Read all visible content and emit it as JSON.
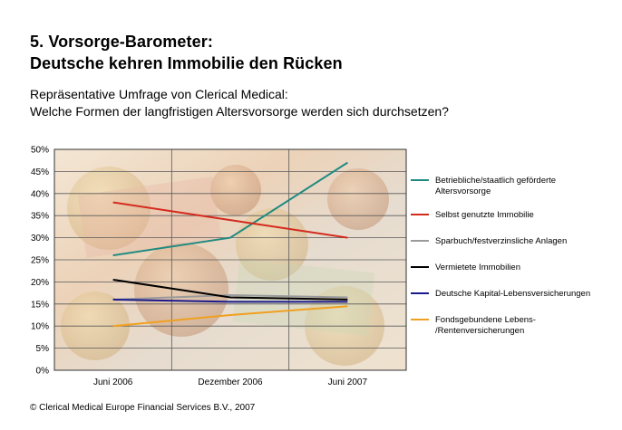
{
  "header": {
    "title_line1": "5. Vorsorge-Barometer:",
    "title_line2": "Deutsche kehren Immobilie den Rücken",
    "subtitle_line1": "Repräsentative Umfrage von Clerical Medical:",
    "subtitle_line2": "Welche Formen der langfristigen Altersvorsorge werden sich durchsetzen?"
  },
  "footer": {
    "copyright": "© Clerical Medical Europe Financial Services B.V., 2007"
  },
  "chart_data": {
    "type": "line",
    "categories": [
      "Juni 2006",
      "Dezember 2006",
      "Juni 2007"
    ],
    "ylim": [
      0,
      50
    ],
    "yticks": [
      0,
      5,
      10,
      15,
      20,
      25,
      30,
      35,
      40,
      45,
      50
    ],
    "ytick_labels": [
      "0%",
      "5%",
      "10%",
      "15%",
      "20%",
      "25%",
      "30%",
      "35%",
      "40%",
      "45%",
      "50%"
    ],
    "grid": true,
    "legend_position": "right",
    "series": [
      {
        "name": "Betriebliche/staatlich geförderte Altersvorsorge",
        "legend_lines": [
          "Betriebliche/staatlich geförderte",
          "Altersvorsorge"
        ],
        "color": "#1f8a80",
        "values": [
          26,
          30,
          47
        ]
      },
      {
        "name": "Selbst genutzte Immobilie",
        "legend_lines": [
          "Selbst genutzte Immobilie"
        ],
        "color": "#d42a1e",
        "values": [
          38,
          34,
          30
        ]
      },
      {
        "name": "Sparbuch/festverzinsliche Anlagen",
        "legend_lines": [
          "Sparbuch/festverzinsliche Anlagen"
        ],
        "color": "#9a9a9a",
        "values": [
          16,
          17,
          16.5
        ]
      },
      {
        "name": "Vermietete Immobilien",
        "legend_lines": [
          "Vermietete Immobilien"
        ],
        "color": "#000000",
        "values": [
          20.5,
          16.5,
          16
        ]
      },
      {
        "name": "Deutsche Kapital-Lebensversicherungen",
        "legend_lines": [
          "Deutsche Kapital-Lebensversicherungen"
        ],
        "color": "#1a1a8c",
        "values": [
          16,
          15.5,
          15.5
        ]
      },
      {
        "name": "Fondsgebundene Lebens-/Rentenversicherungen",
        "legend_lines": [
          "Fondsgebundene Lebens-",
          "/Rentenversicherungen"
        ],
        "color": "#f0a020",
        "values": [
          10,
          12.5,
          14.5
        ]
      }
    ]
  }
}
